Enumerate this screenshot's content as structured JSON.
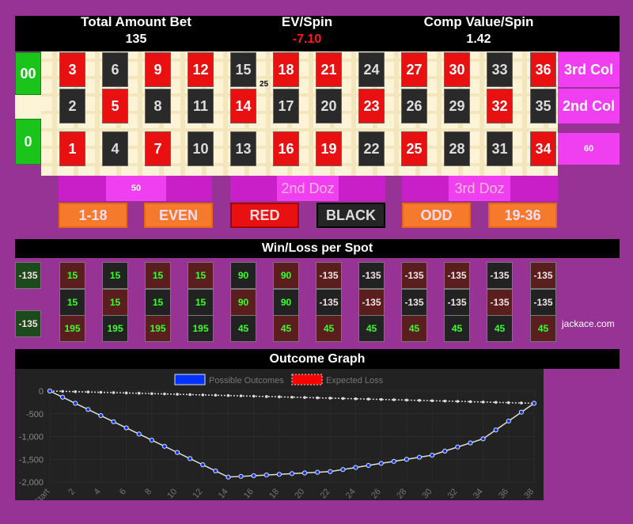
{
  "stats": [
    {
      "label": "Total Amount Bet",
      "value": "135"
    },
    {
      "label": "EV/Spin",
      "value": "-7.10"
    },
    {
      "label": "Comp Value/Spin",
      "value": "1.42"
    }
  ],
  "colors": {
    "background": "#973394",
    "red": "#e81010",
    "black": "#2a2a2a",
    "green": "#1bc41b",
    "pink": "#f03ff0",
    "orange": "#f57a2c",
    "ev_negative": "#ff1a1a"
  },
  "board": {
    "zeros": [
      "00",
      "0"
    ],
    "rows": [
      {
        "numbers": [
          "3",
          "6",
          "9",
          "12",
          "15",
          "18",
          "21",
          "24",
          "27",
          "30",
          "33",
          "36"
        ],
        "colors": [
          "red",
          "blk",
          "red",
          "red",
          "blk",
          "red",
          "red",
          "blk",
          "red",
          "red",
          "blk",
          "red"
        ],
        "column_label": "3rd Col"
      },
      {
        "numbers": [
          "2",
          "5",
          "8",
          "11",
          "14",
          "17",
          "20",
          "23",
          "26",
          "29",
          "32",
          "35"
        ],
        "colors": [
          "blk",
          "red",
          "blk",
          "blk",
          "red",
          "blk",
          "blk",
          "red",
          "blk",
          "blk",
          "red",
          "blk"
        ],
        "column_label": "2nd Col"
      },
      {
        "numbers": [
          "1",
          "4",
          "7",
          "10",
          "13",
          "16",
          "19",
          "22",
          "25",
          "28",
          "31",
          "34"
        ],
        "colors": [
          "red",
          "blk",
          "red",
          "blk",
          "blk",
          "red",
          "red",
          "blk",
          "red",
          "blk",
          "blk",
          "red"
        ],
        "column_label": "60"
      }
    ],
    "chip_label": "25",
    "dozens": [
      "50",
      "2nd Doz",
      "3rd Doz"
    ],
    "outside": [
      "1-18",
      "EVEN",
      "RED",
      "BLACK",
      "ODD",
      "19-36"
    ]
  },
  "winloss": {
    "title": "Win/Loss per Spot",
    "zeros": [
      "-135",
      "-135"
    ],
    "rows": [
      [
        "15",
        "15",
        "15",
        "15",
        "90",
        "90",
        "-135",
        "-135",
        "-135",
        "-135",
        "-135",
        "-135"
      ],
      [
        "15",
        "15",
        "15",
        "15",
        "90",
        "90",
        "-135",
        "-135",
        "-135",
        "-135",
        "-135",
        "-135"
      ],
      [
        "195",
        "195",
        "195",
        "195",
        "45",
        "45",
        "45",
        "45",
        "45",
        "45",
        "45",
        "45"
      ]
    ],
    "credit": "jackace.com"
  },
  "graph": {
    "title": "Outcome Graph"
  },
  "chart_data": {
    "type": "line",
    "legend": [
      "Possible Outcomes",
      "Expected Loss"
    ],
    "legend_placement": "top",
    "x": [
      "Start",
      "1",
      "2",
      "3",
      "4",
      "5",
      "6",
      "7",
      "8",
      "9",
      "10",
      "11",
      "12",
      "13",
      "14",
      "15",
      "16",
      "17",
      "18",
      "19",
      "20",
      "21",
      "22",
      "23",
      "24",
      "25",
      "26",
      "27",
      "28",
      "29",
      "30",
      "31",
      "32",
      "33",
      "34",
      "35",
      "36",
      "37",
      "38"
    ],
    "xtick_labels": [
      "Start",
      "2",
      "4",
      "6",
      "8",
      "10",
      "12",
      "14",
      "16",
      "18",
      "20",
      "22",
      "24",
      "26",
      "28",
      "30",
      "32",
      "34",
      "36",
      "38"
    ],
    "yticks": [
      "0",
      "-500",
      "-1,000",
      "-1,500",
      "-2,000"
    ],
    "ylim": [
      -2000,
      0
    ],
    "series": [
      {
        "name": "Possible Outcomes",
        "color": "#0033ff",
        "values": [
          0,
          -135,
          -270,
          -405,
          -540,
          -675,
          -810,
          -945,
          -1080,
          -1215,
          -1350,
          -1485,
          -1620,
          -1755,
          -1890,
          -1875,
          -1860,
          -1845,
          -1830,
          -1815,
          -1800,
          -1785,
          -1770,
          -1725,
          -1680,
          -1635,
          -1590,
          -1545,
          -1500,
          -1455,
          -1410,
          -1320,
          -1230,
          -1140,
          -1050,
          -855,
          -660,
          -465,
          -270
        ]
      },
      {
        "name": "Expected Loss",
        "color": "#ff0000",
        "values": [
          0,
          -7.1,
          -14.2,
          -21.3,
          -28.4,
          -35.5,
          -42.6,
          -49.7,
          -56.8,
          -63.9,
          -71,
          -78.1,
          -85.2,
          -92.3,
          -99.4,
          -106.5,
          -113.6,
          -120.7,
          -127.8,
          -134.9,
          -142,
          -149.1,
          -156.2,
          -163.3,
          -170.4,
          -177.5,
          -184.6,
          -191.7,
          -198.8,
          -205.9,
          -213,
          -220.1,
          -227.2,
          -234.3,
          -241.4,
          -248.5,
          -255.6,
          -262.7,
          -269.8
        ]
      }
    ],
    "grid": true
  }
}
